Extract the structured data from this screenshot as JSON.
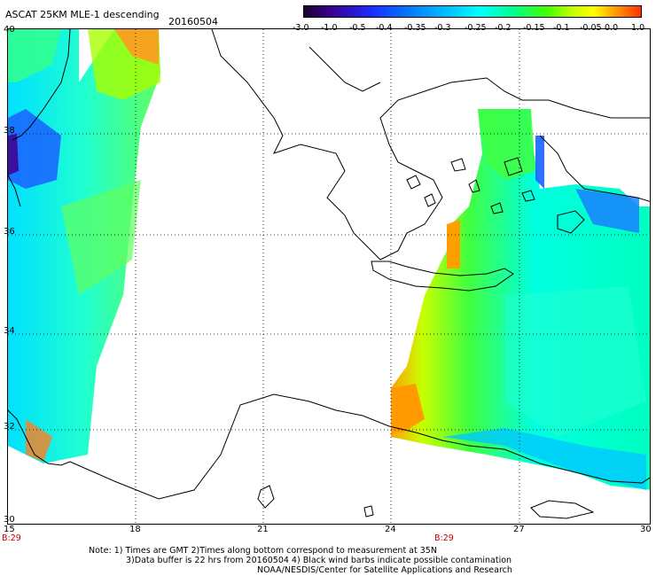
{
  "header": {
    "title": "ASCAT 25KM MLE-1 descending",
    "date": "20160504"
  },
  "colorbar": {
    "labels": [
      "-3.0",
      "-1.0",
      "-0.5",
      "-0.4",
      "-0.35",
      "-0.3",
      "-0.25",
      "-0.2",
      "-0.15",
      "-0.1",
      "-0.05",
      "0.0",
      "1.0"
    ],
    "colors": [
      "#1a0033",
      "#3a0090",
      "#1a2cff",
      "#0080ff",
      "#00c8ff",
      "#00ffff",
      "#00ff90",
      "#40ff00",
      "#c8ff00",
      "#ffff00",
      "#ffa000",
      "#ff3000"
    ]
  },
  "axes": {
    "lat_labels": [
      "40",
      "38",
      "36",
      "34",
      "32",
      "30"
    ],
    "lon_labels": [
      "15",
      "18",
      "21",
      "24",
      "27",
      "30"
    ],
    "pass_time_left": "B:29",
    "pass_time_right": "B:29"
  },
  "notes": {
    "line1": "Note: 1) Times are GMT 2)Times along bottom correspond to measurement at 35N",
    "line2": "3)Data buffer is 22 hrs from 20160504 4) Black wind barbs indicate possible contamination",
    "line3": "NOAA/NESDIS/Center for Satellite Applications and Research"
  }
}
